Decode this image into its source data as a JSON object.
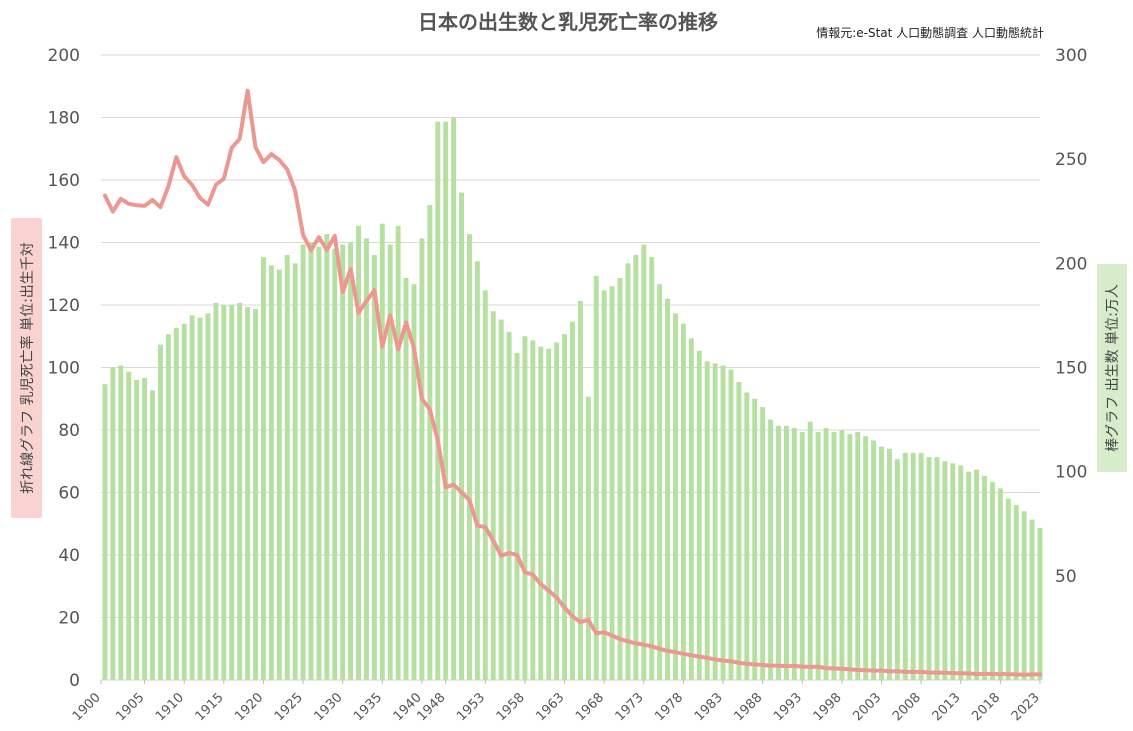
{
  "chart_data": {
    "type": "bar+line",
    "title": "日本の出生数と乳児死亡率の推移",
    "source": "情報元:e-Stat 人口動態調査 人口動態統計",
    "left_axis": {
      "label": "折れ線グラフ 乳児死亡率 単位:出生千対",
      "ylim": [
        0,
        200
      ],
      "ticks": [
        0,
        20,
        40,
        60,
        80,
        100,
        120,
        140,
        160,
        180,
        200
      ]
    },
    "right_axis": {
      "label": "棒グラフ 出生数 単位:万人",
      "ylim": [
        0,
        300
      ],
      "ticks": [
        50,
        100,
        150,
        200,
        250,
        300
      ]
    },
    "x_tick_labels": [
      "1900",
      "1905",
      "1910",
      "1915",
      "1920",
      "1925",
      "1930",
      "1935",
      "1940",
      "1948",
      "1953",
      "1958",
      "1963",
      "1968",
      "1973",
      "1978",
      "1983",
      "1988",
      "1993",
      "1998",
      "2003",
      "2008",
      "2013",
      "2018",
      "2023"
    ],
    "colors": {
      "bars": "#b5e0a0",
      "line": "#ec9890",
      "left_label_bg": "#f8d3d0",
      "right_label_bg": "#d6ecca"
    },
    "years": [
      1900,
      1901,
      1902,
      1903,
      1904,
      1905,
      1906,
      1907,
      1908,
      1909,
      1910,
      1911,
      1912,
      1913,
      1914,
      1915,
      1916,
      1917,
      1918,
      1919,
      1920,
      1921,
      1922,
      1923,
      1924,
      1925,
      1926,
      1927,
      1928,
      1929,
      1930,
      1931,
      1932,
      1933,
      1934,
      1935,
      1936,
      1937,
      1938,
      1939,
      1940,
      1943,
      1947,
      1948,
      1949,
      1950,
      1951,
      1952,
      1953,
      1954,
      1955,
      1956,
      1957,
      1958,
      1959,
      1960,
      1961,
      1962,
      1963,
      1964,
      1965,
      1966,
      1967,
      1968,
      1969,
      1970,
      1971,
      1972,
      1973,
      1974,
      1975,
      1976,
      1977,
      1978,
      1979,
      1980,
      1981,
      1982,
      1983,
      1984,
      1985,
      1986,
      1987,
      1988,
      1989,
      1990,
      1991,
      1992,
      1993,
      1994,
      1995,
      1996,
      1997,
      1998,
      1999,
      2000,
      2001,
      2002,
      2003,
      2004,
      2005,
      2006,
      2007,
      2008,
      2009,
      2010,
      2011,
      2012,
      2013,
      2014,
      2015,
      2016,
      2017,
      2018,
      2019,
      2020,
      2021,
      2022,
      2023
    ],
    "series": [
      {
        "name": "出生数",
        "kind": "bar",
        "axis": "right",
        "values": [
          142,
          150,
          151,
          148,
          144,
          145,
          139,
          161,
          166,
          169,
          171,
          175,
          174,
          176,
          181,
          180,
          180,
          181,
          179,
          178,
          203,
          199,
          197,
          204,
          200,
          209,
          210,
          208,
          214,
          207,
          209,
          210,
          218,
          212,
          204,
          219,
          209,
          218,
          193,
          190,
          212,
          228,
          268,
          268,
          270,
          234,
          214,
          201,
          187,
          177,
          173,
          167,
          157,
          165,
          163,
          160,
          159,
          162,
          166,
          172,
          182,
          136,
          194,
          187,
          189,
          193,
          200,
          204,
          209,
          203,
          190,
          183,
          176,
          171,
          164,
          158,
          153,
          152,
          151,
          149,
          143,
          138,
          135,
          131,
          125,
          122,
          122,
          121,
          119,
          124,
          119,
          121,
          119,
          120,
          118,
          119,
          117,
          115,
          112,
          111,
          106,
          109,
          109,
          109,
          107,
          107,
          105,
          104,
          103,
          100,
          101,
          98,
          95,
          92,
          87,
          84,
          81,
          77,
          73
        ]
      },
      {
        "name": "乳児死亡率",
        "kind": "line",
        "axis": "left",
        "values": [
          155.0,
          149.9,
          154.0,
          152.4,
          151.9,
          151.7,
          153.6,
          151.3,
          158.0,
          167.3,
          161.2,
          158.4,
          154.2,
          152.1,
          158.5,
          160.4,
          170.3,
          173.2,
          188.6,
          170.5,
          165.7,
          168.3,
          166.4,
          163.4,
          156.7,
          142.4,
          137.5,
          141.7,
          137.6,
          142.1,
          124.1,
          131.5,
          117.5,
          121.3,
          124.8,
          106.7,
          116.7,
          105.8,
          114.4,
          106.2,
          90.0,
          86.6,
          76.7,
          61.7,
          62.5,
          60.1,
          57.5,
          49.4,
          48.9,
          44.6,
          39.8,
          40.6,
          40.0,
          34.5,
          33.7,
          30.7,
          28.6,
          26.4,
          23.2,
          20.4,
          18.5,
          19.3,
          14.9,
          15.3,
          14.2,
          13.1,
          12.4,
          11.7,
          11.3,
          10.8,
          10.0,
          9.3,
          8.9,
          8.4,
          7.9,
          7.5,
          7.1,
          6.6,
          6.2,
          6.0,
          5.5,
          5.2,
          5.0,
          4.8,
          4.6,
          4.6,
          4.4,
          4.5,
          4.3,
          4.2,
          4.3,
          3.8,
          3.7,
          3.6,
          3.4,
          3.2,
          3.1,
          3.0,
          3.0,
          2.8,
          2.8,
          2.6,
          2.6,
          2.6,
          2.4,
          2.3,
          2.3,
          2.2,
          2.1,
          2.1,
          1.9,
          2.0,
          1.9,
          1.9,
          1.9,
          1.8,
          1.7,
          1.8,
          1.8
        ]
      }
    ]
  }
}
